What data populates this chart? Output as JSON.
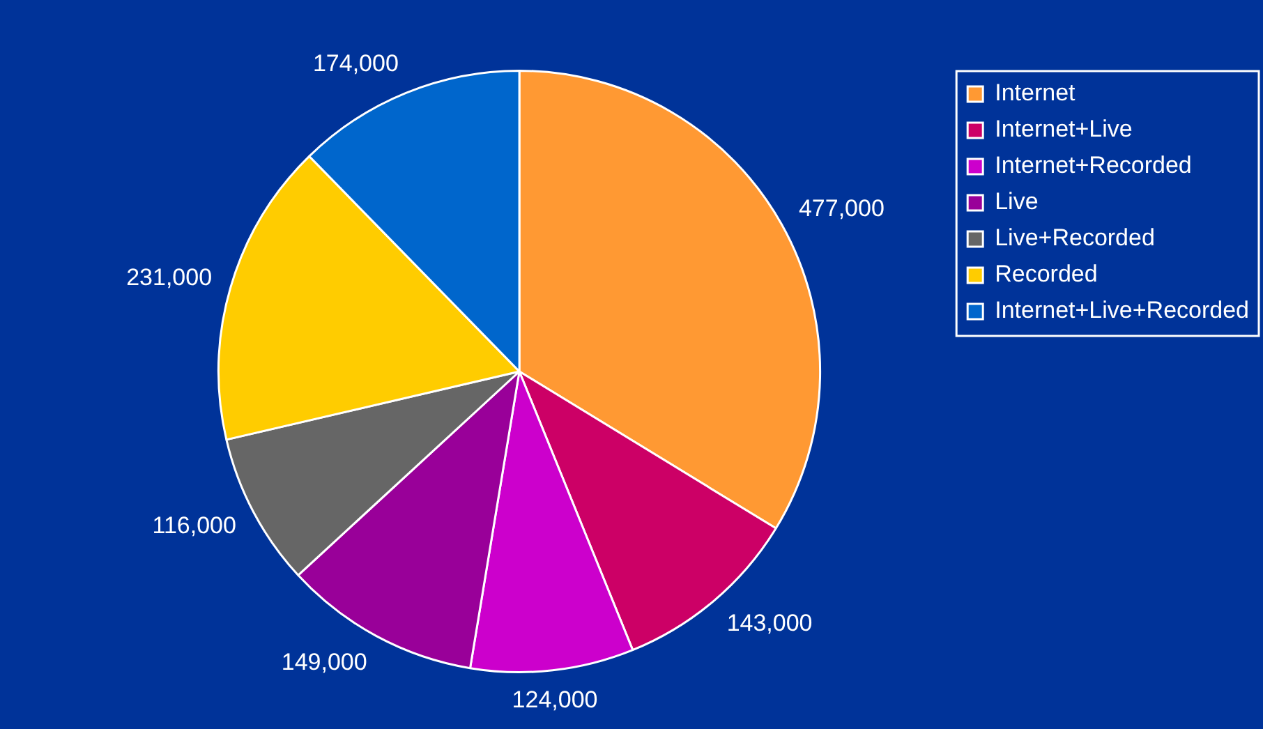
{
  "chart_data": {
    "type": "pie",
    "categories": [
      "Internet",
      "Internet+Live",
      "Internet+Recorded",
      "Live",
      "Live+Recorded",
      "Recorded",
      "Internet+Live+Recorded"
    ],
    "values": [
      477000,
      143000,
      124000,
      149000,
      116000,
      231000,
      174000
    ],
    "colors": [
      "#ff9933",
      "#cc0066",
      "#cc00cc",
      "#990099",
      "#666666",
      "#ffcc00",
      "#0066cc"
    ],
    "value_labels": [
      "477,000",
      "143,000",
      "124,000",
      "149,000",
      "116,000",
      "231,000",
      "174,000"
    ],
    "legend": "top right"
  }
}
